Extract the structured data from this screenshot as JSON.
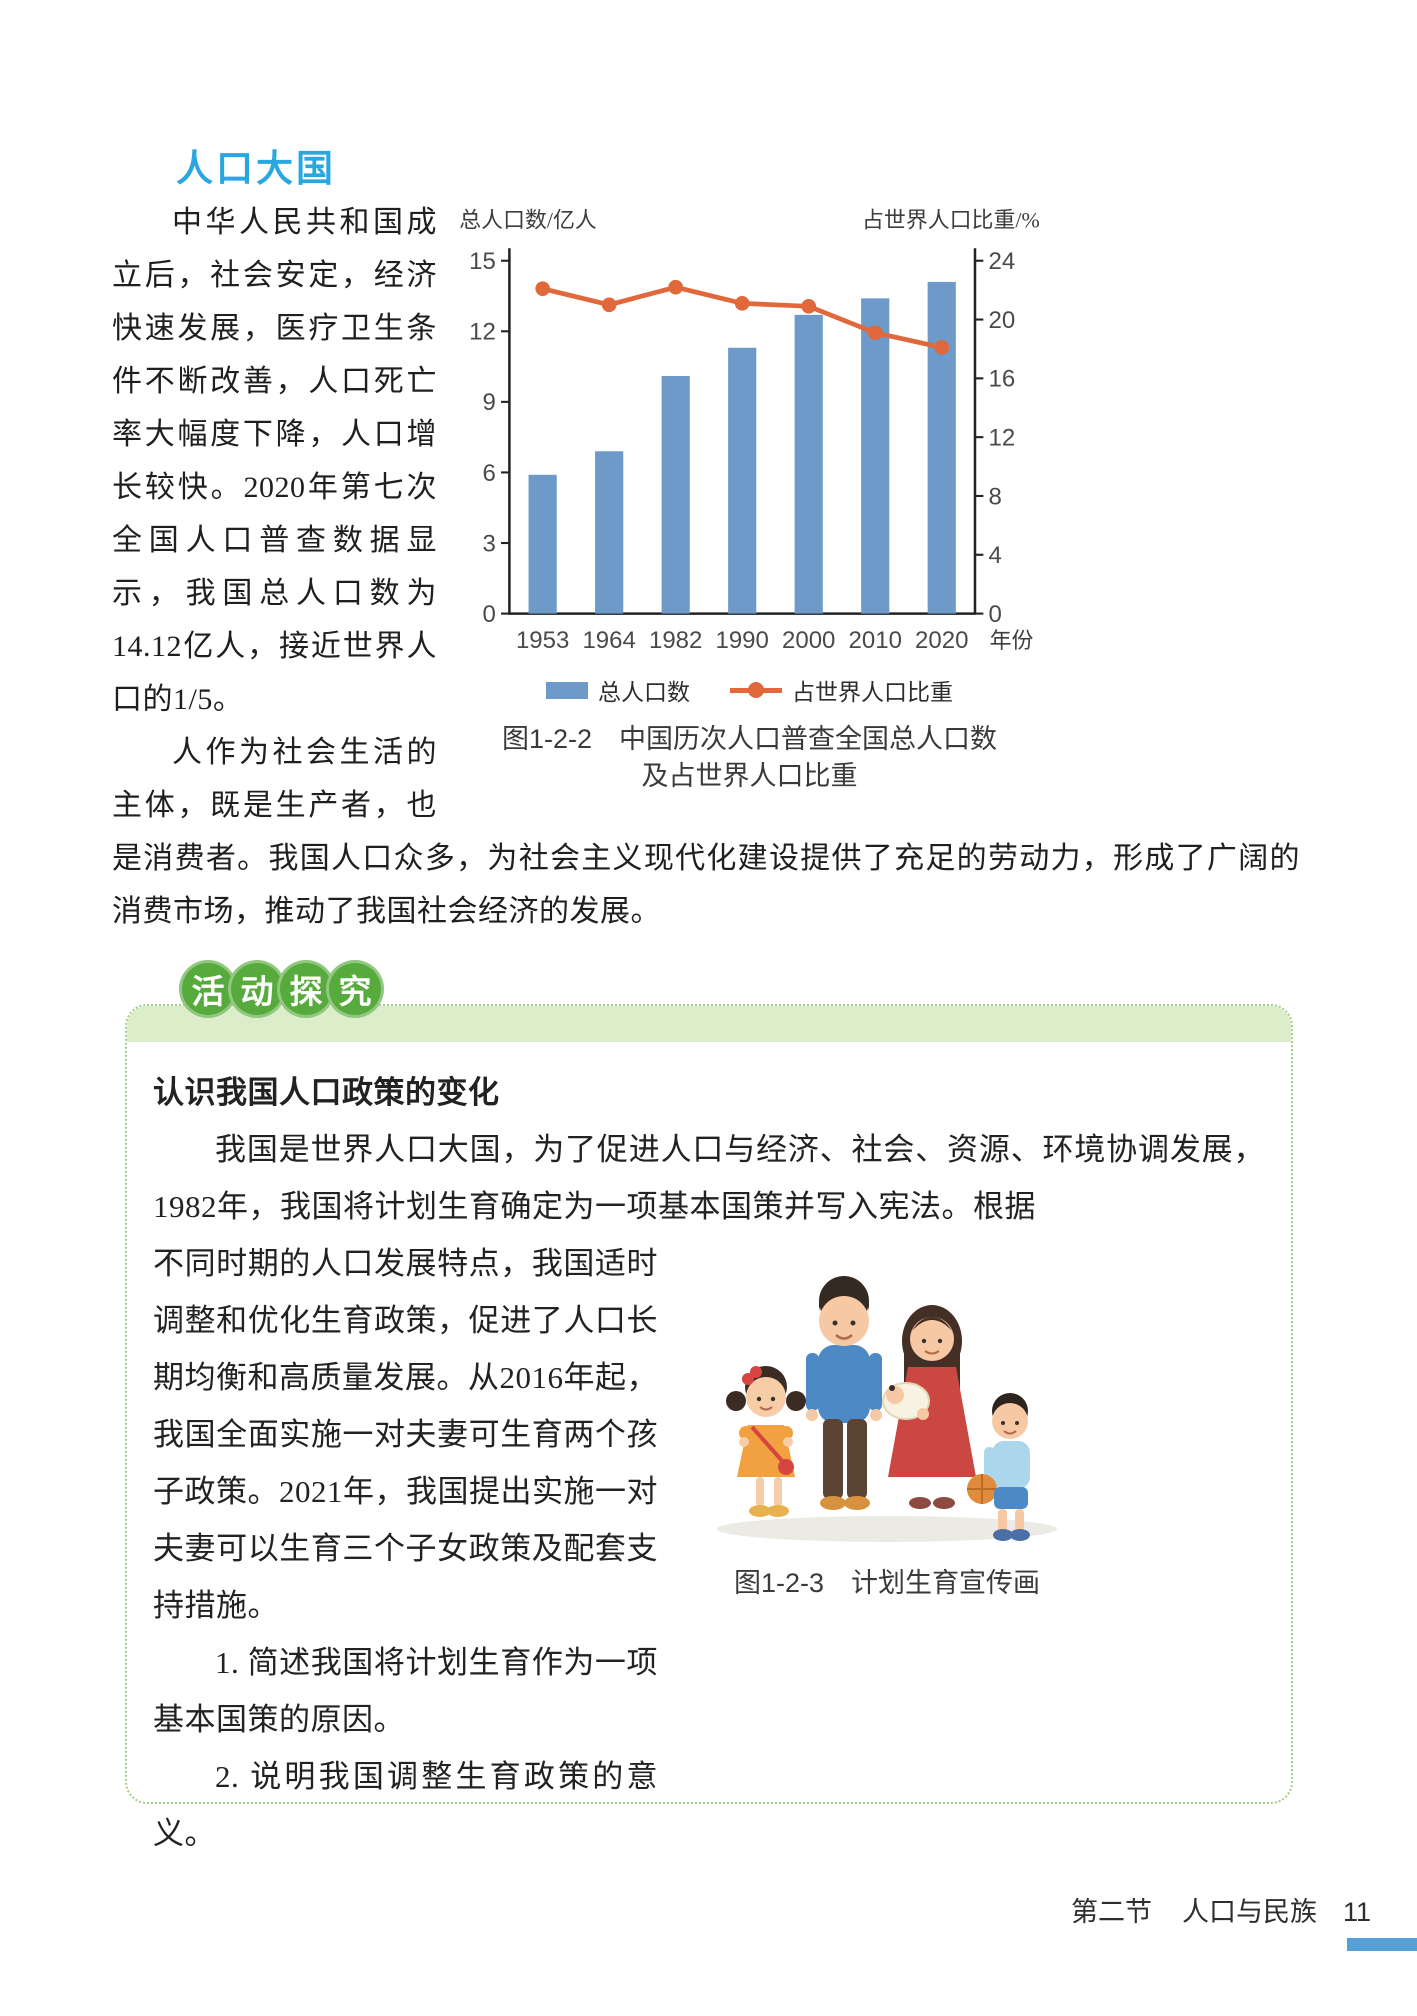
{
  "page": {
    "heading": "人口大国",
    "paragraph1": "中华人民共和国成立后，社会安定，经济快速发展，医疗卫生条件不断改善，人口死亡率大幅度下降，人口增长较快。2020年第七次全国人口普查数据显示，我国总人口数为14.12亿人，接近世界人口的1/5。",
    "paragraph2": "人作为社会生活的主体，既是生产者，也是消费者。我国人口众多，为社会主义现代化建设提供了充足的劳动力，形成了广阔的消费市场，推动了我国社会经济的发展。"
  },
  "chart_data": {
    "type": "bar+line combo",
    "categories": [
      "1953",
      "1964",
      "1982",
      "1990",
      "2000",
      "2010",
      "2020"
    ],
    "series": [
      {
        "name": "总人口数",
        "type": "bar",
        "axis": "left",
        "unit": "亿人",
        "values": [
          5.9,
          6.9,
          10.1,
          11.3,
          12.7,
          13.4,
          14.1
        ],
        "color": "#6d9ac9"
      },
      {
        "name": "占世界人口比重",
        "type": "line",
        "axis": "right",
        "unit": "%",
        "values": [
          22.1,
          21.0,
          22.2,
          21.1,
          20.9,
          19.1,
          18.1
        ],
        "color": "#e0683a"
      }
    ],
    "left_axis": {
      "title": "总人口数/亿人",
      "min": 0,
      "max": 15,
      "ticks": [
        0,
        3,
        6,
        9,
        12,
        15
      ]
    },
    "right_axis": {
      "title": "占世界人口比重/%",
      "min": 0,
      "max": 24,
      "ticks": [
        0,
        4,
        8,
        12,
        16,
        20,
        24
      ]
    },
    "x_axis": {
      "title": "年份"
    },
    "legend_position": "bottom",
    "grid": "off"
  },
  "figure2": {
    "caption_line1": "图1-2-2　中国历次人口普查全国总人口数",
    "caption_line2": "及占世界人口比重"
  },
  "activity": {
    "badge_chars": [
      "活",
      "动",
      "探",
      "究"
    ],
    "title": "认识我国人口政策的变化",
    "paragraph_intro": "我国是世界人口大国，为了促进人口与经济、社会、资源、环境协调发展，1982年，我国将计划生育确定为一项基本国策并写入宪法。根据",
    "paragraph_cont": "不同时期的人口发展特点，我国适时调整和优化生育政策，促进了人口长期均衡和高质量发展。从2016年起，我国全面实施一对夫妻可生育两个孩子政策。2021年，我国提出实施一对夫妻可以生育三个子女政策及配套支持措施。",
    "question1": "1. 简述我国将计划生育作为一项基本国策的原因。",
    "question2": "2. 说明我国调整生育政策的意义。",
    "figure_caption": "图1-2-3　计划生育宣传画"
  },
  "footer": {
    "section_label": "第二节",
    "section_title": "人口与民族",
    "page_number": "11"
  },
  "colors": {
    "heading_blue": "#29a7e0",
    "bar_blue": "#6d9ac9",
    "line_orange": "#e0683a",
    "activity_band_green": "#dcedca",
    "activity_border_green": "#a3cd84",
    "badge_green": "#57aa3c",
    "footer_bar_blue": "#55a0d6"
  }
}
